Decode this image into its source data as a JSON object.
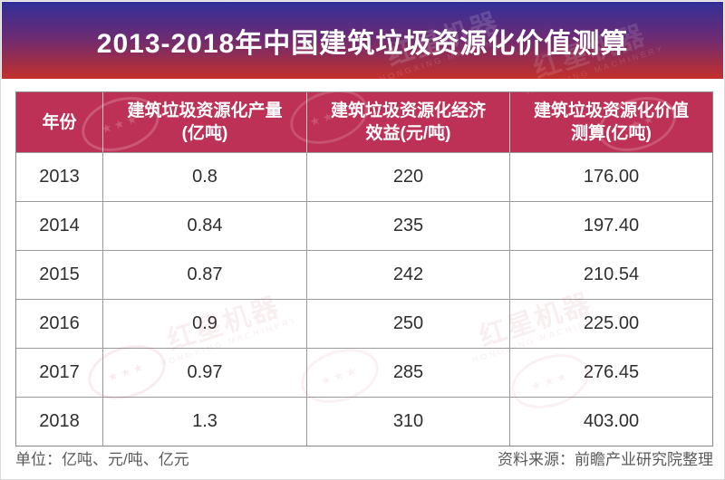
{
  "page": {
    "background": "#ffffff",
    "frame_border": "#d9d9d9"
  },
  "banner": {
    "title": "2013-2018年中国建筑垃圾资源化价值测算",
    "gradient_top": "#31309a",
    "gradient_bottom": "#c4302a",
    "text_color": "#ffffff"
  },
  "table": {
    "header_bg": "#bd3156",
    "header_text_color": "#ffffff",
    "columns": [
      "年份",
      "建筑垃圾资源化产量\n(亿吨)",
      "建筑垃圾资源化经济\n效益(元/吨)",
      "建筑垃圾资源化价值\n测算(亿吨)"
    ],
    "rows": [
      {
        "year": "2013",
        "output": "0.8",
        "benefit": "220",
        "value": "176.00"
      },
      {
        "year": "2014",
        "output": "0.84",
        "benefit": "235",
        "value": "197.40"
      },
      {
        "year": "2015",
        "output": "0.87",
        "benefit": "242",
        "value": "210.54"
      },
      {
        "year": "2016",
        "output": "0.9",
        "benefit": "250",
        "value": "225.00"
      },
      {
        "year": "2017",
        "output": "0.97",
        "benefit": "285",
        "value": "276.45"
      },
      {
        "year": "2018",
        "output": "1.3",
        "benefit": "310",
        "value": "403.00"
      }
    ]
  },
  "footer": {
    "units_note": "单位：亿吨、元/吨、亿元",
    "source": "资料来源：前瞻产业研究院整理"
  },
  "watermark": {
    "cn": "红星机器",
    "en": "HONGXING MACHINERY"
  },
  "chart_data": {
    "type": "table",
    "title": "2013-2018年中国建筑垃圾资源化价值测算",
    "categories": [
      "2013",
      "2014",
      "2015",
      "2016",
      "2017",
      "2018"
    ],
    "series": [
      {
        "name": "建筑垃圾资源化产量(亿吨)",
        "values": [
          0.8,
          0.84,
          0.87,
          0.9,
          0.97,
          1.3
        ]
      },
      {
        "name": "建筑垃圾资源化经济效益(元/吨)",
        "values": [
          220,
          235,
          242,
          250,
          285,
          310
        ]
      },
      {
        "name": "建筑垃圾资源化价值测算(亿吨)",
        "values": [
          176.0,
          197.4,
          210.54,
          225.0,
          276.45,
          403.0
        ]
      }
    ],
    "units_note": "单位：亿吨、元/吨、亿元",
    "source": "资料来源：前瞻产业研究院整理",
    "layout_hints": {
      "header_bg": "#bd3156",
      "banner_gradient": [
        "#31309a",
        "#c4302a"
      ],
      "grid": true
    }
  }
}
